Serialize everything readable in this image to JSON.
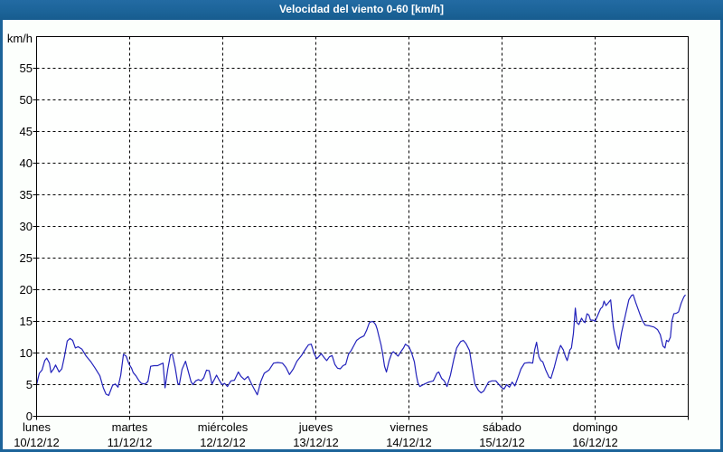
{
  "window": {
    "title": "Velocidad del viento 0-60 [km/h]"
  },
  "style": {
    "frame_color": "#1c6499",
    "panel_background": "#fcfffc",
    "plot_background": "#fefffe",
    "grid_color": "#000000",
    "axis_color": "#000000",
    "title_text_color": "#ffffff",
    "line_color": "#2222bb"
  },
  "chart_data": {
    "type": "line",
    "title": "Velocidad del viento 0-60 [km/h]",
    "ylabel": "km/h",
    "xlabel": "",
    "ylim": [
      0,
      60
    ],
    "ytick_interval": 5,
    "ytick_labels": [
      "0",
      "5",
      "10",
      "15",
      "20",
      "25",
      "30",
      "35",
      "40",
      "45",
      "50",
      "55"
    ],
    "grid": "dashed, horizontal every 5 km/h and vertical at every day boundary",
    "legend_position": "none",
    "x_unit": "hours from 00:00 lunes 10/12/12 (0 to 168)",
    "x_axis_days": [
      {
        "weekday": "lunes",
        "date": "10/12/12"
      },
      {
        "weekday": "martes",
        "date": "11/12/12"
      },
      {
        "weekday": "miércoles",
        "date": "12/12/12"
      },
      {
        "weekday": "jueves",
        "date": "13/12/12"
      },
      {
        "weekday": "viernes",
        "date": "14/12/12"
      },
      {
        "weekday": "sábado",
        "date": "15/12/12"
      },
      {
        "weekday": "domingo",
        "date": "16/12/12"
      }
    ],
    "series": [
      {
        "name": "Velocidad del viento",
        "color": "#2222bb",
        "points": [
          [
            0,
            5
          ],
          [
            0.7,
            6.8
          ],
          [
            1.4,
            7.3
          ],
          [
            2.1,
            8.8
          ],
          [
            2.6,
            9.2
          ],
          [
            3.3,
            8.4
          ],
          [
            3.7,
            6.9
          ],
          [
            4.4,
            7.5
          ],
          [
            4.9,
            8.1
          ],
          [
            5.8,
            7
          ],
          [
            6.5,
            7.5
          ],
          [
            7.2,
            9.5
          ],
          [
            7.9,
            11.9
          ],
          [
            8.6,
            12.3
          ],
          [
            9.3,
            12
          ],
          [
            10,
            10.8
          ],
          [
            10.7,
            11
          ],
          [
            11.7,
            10.6
          ],
          [
            12.8,
            9.5
          ],
          [
            14,
            8.6
          ],
          [
            15.1,
            7.6
          ],
          [
            16.3,
            6.4
          ],
          [
            17.2,
            4.5
          ],
          [
            17.9,
            3.5
          ],
          [
            18.6,
            3.3
          ],
          [
            19.6,
            4.9
          ],
          [
            20.3,
            5.1
          ],
          [
            21,
            4.6
          ],
          [
            21.7,
            6.5
          ],
          [
            22.4,
            9.8
          ],
          [
            23.1,
            9.5
          ],
          [
            23.8,
            8.3
          ],
          [
            24.5,
            7.6
          ],
          [
            24.9,
            6.9
          ],
          [
            25.6,
            6.4
          ],
          [
            26.3,
            5.7
          ],
          [
            27,
            5.2
          ],
          [
            28,
            5.1
          ],
          [
            28.7,
            5.5
          ],
          [
            29.4,
            7.9
          ],
          [
            30.3,
            8
          ],
          [
            31.2,
            8
          ],
          [
            32.2,
            8.3
          ],
          [
            32.6,
            8.4
          ],
          [
            33.1,
            4.5
          ],
          [
            33.8,
            7.4
          ],
          [
            34.5,
            9.7
          ],
          [
            35,
            9.8
          ],
          [
            35.7,
            7.8
          ],
          [
            36.4,
            5.2
          ],
          [
            36.8,
            5
          ],
          [
            37.5,
            7.4
          ],
          [
            38.4,
            8.7
          ],
          [
            39.1,
            7.1
          ],
          [
            39.8,
            5.5
          ],
          [
            40.3,
            5
          ],
          [
            41,
            5.6
          ],
          [
            41.7,
            5.8
          ],
          [
            42.4,
            5.6
          ],
          [
            43.1,
            6.1
          ],
          [
            43.8,
            7.3
          ],
          [
            44.5,
            7.2
          ],
          [
            45.2,
            5.1
          ],
          [
            45.9,
            5.9
          ],
          [
            46.4,
            6.5
          ],
          [
            47.1,
            5.7
          ],
          [
            47.8,
            5
          ],
          [
            48.5,
            5.2
          ],
          [
            49.2,
            4.7
          ],
          [
            50.1,
            5.6
          ],
          [
            51,
            5.7
          ],
          [
            52,
            7
          ],
          [
            52.7,
            6.3
          ],
          [
            53.6,
            5.8
          ],
          [
            54.5,
            6.3
          ],
          [
            55.5,
            5
          ],
          [
            56.2,
            4.2
          ],
          [
            56.9,
            3.4
          ],
          [
            57.8,
            5.5
          ],
          [
            58.7,
            6.8
          ],
          [
            59.9,
            7.3
          ],
          [
            61.1,
            8.4
          ],
          [
            62.2,
            8.5
          ],
          [
            63.4,
            8.4
          ],
          [
            64.3,
            7.7
          ],
          [
            65.2,
            6.6
          ],
          [
            66.2,
            7.5
          ],
          [
            67.1,
            8.7
          ],
          [
            68.3,
            9.6
          ],
          [
            69.2,
            10.5
          ],
          [
            70.1,
            11.3
          ],
          [
            70.8,
            11.4
          ],
          [
            71.5,
            10
          ],
          [
            72.2,
            9.1
          ],
          [
            72.7,
            9.4
          ],
          [
            73.4,
            9.9
          ],
          [
            74.1,
            9.3
          ],
          [
            74.8,
            8.8
          ],
          [
            75.5,
            9.4
          ],
          [
            76.2,
            9.6
          ],
          [
            76.9,
            8.2
          ],
          [
            77.6,
            7.6
          ],
          [
            78.3,
            7.5
          ],
          [
            79,
            8
          ],
          [
            79.7,
            8.2
          ],
          [
            80.4,
            9.8
          ],
          [
            81.1,
            10.4
          ],
          [
            81.8,
            11.2
          ],
          [
            82.5,
            12
          ],
          [
            83.4,
            12.4
          ],
          [
            84.4,
            12.7
          ],
          [
            85.1,
            13.6
          ],
          [
            85.8,
            14.8
          ],
          [
            86.5,
            15
          ],
          [
            86.9,
            14.9
          ],
          [
            87.4,
            14.5
          ],
          [
            87.8,
            13.8
          ],
          [
            88.3,
            12.5
          ],
          [
            88.8,
            11.3
          ],
          [
            89.2,
            10
          ],
          [
            89.7,
            7.9
          ],
          [
            90.2,
            7
          ],
          [
            90.9,
            8.8
          ],
          [
            91.6,
            10
          ],
          [
            92,
            10.2
          ],
          [
            92.7,
            9.8
          ],
          [
            93.2,
            9.5
          ],
          [
            93.9,
            10.2
          ],
          [
            94.6,
            10.8
          ],
          [
            95.1,
            11.4
          ],
          [
            95.5,
            11.2
          ],
          [
            96,
            11
          ],
          [
            96.7,
            10
          ],
          [
            97.4,
            8.6
          ],
          [
            97.9,
            6.5
          ],
          [
            98.3,
            5.3
          ],
          [
            98.8,
            4.7
          ],
          [
            100,
            5.1
          ],
          [
            101.1,
            5.4
          ],
          [
            102.3,
            5.6
          ],
          [
            103.2,
            6.8
          ],
          [
            103.7,
            7
          ],
          [
            104.4,
            6
          ],
          [
            105.1,
            5.6
          ],
          [
            105.8,
            4.7
          ],
          [
            106.7,
            6.5
          ],
          [
            107.6,
            9.1
          ],
          [
            108.3,
            10.8
          ],
          [
            109.3,
            11.8
          ],
          [
            110,
            12
          ],
          [
            110.7,
            11.5
          ],
          [
            111.6,
            10.4
          ],
          [
            112.3,
            7.7
          ],
          [
            113,
            5.1
          ],
          [
            113.9,
            4.1
          ],
          [
            114.6,
            3.7
          ],
          [
            115.3,
            4
          ],
          [
            116.5,
            5.4
          ],
          [
            117.4,
            5.6
          ],
          [
            118.4,
            5.6
          ],
          [
            119.1,
            5.1
          ],
          [
            119.8,
            4.6
          ],
          [
            120.5,
            4.3
          ],
          [
            121.2,
            5
          ],
          [
            121.9,
            4.6
          ],
          [
            122.6,
            5.4
          ],
          [
            123.3,
            4.8
          ],
          [
            124.2,
            6.3
          ],
          [
            124.9,
            7.5
          ],
          [
            125.8,
            8.4
          ],
          [
            127,
            8.5
          ],
          [
            127.9,
            8.4
          ],
          [
            128.4,
            10.5
          ],
          [
            128.9,
            11.7
          ],
          [
            129.5,
            9.4
          ],
          [
            130,
            8.8
          ],
          [
            130.5,
            8.6
          ],
          [
            131.2,
            7.4
          ],
          [
            132.1,
            6.2
          ],
          [
            132.6,
            6
          ],
          [
            133.5,
            7.8
          ],
          [
            134.4,
            10
          ],
          [
            135.1,
            11.2
          ],
          [
            135.8,
            10.5
          ],
          [
            136.3,
            9.5
          ],
          [
            136.8,
            8.8
          ],
          [
            137.5,
            10.5
          ],
          [
            137.9,
            10.8
          ],
          [
            138.4,
            13.1
          ],
          [
            138.9,
            17.1
          ],
          [
            139.3,
            14.8
          ],
          [
            139.8,
            14.5
          ],
          [
            140.5,
            15.5
          ],
          [
            141,
            15
          ],
          [
            141.4,
            14.8
          ],
          [
            141.9,
            16.2
          ],
          [
            142.4,
            16
          ],
          [
            142.8,
            15.2
          ],
          [
            143.5,
            15.2
          ],
          [
            144,
            15
          ],
          [
            144.7,
            16
          ],
          [
            145.4,
            17
          ],
          [
            145.9,
            17.3
          ],
          [
            146.3,
            18.2
          ],
          [
            146.8,
            17.5
          ],
          [
            147.5,
            18
          ],
          [
            148,
            18.4
          ],
          [
            148.7,
            14.1
          ],
          [
            149.6,
            11.3
          ],
          [
            150.1,
            10.6
          ],
          [
            150.8,
            13.2
          ],
          [
            152,
            16.5
          ],
          [
            152.7,
            18.4
          ],
          [
            153.4,
            19.1
          ],
          [
            153.8,
            19.2
          ],
          [
            154.5,
            17.9
          ],
          [
            155.5,
            16.2
          ],
          [
            156.2,
            15.1
          ],
          [
            156.9,
            14.4
          ],
          [
            158,
            14.3
          ],
          [
            159.2,
            14.1
          ],
          [
            160.1,
            13.7
          ],
          [
            160.8,
            12.9
          ],
          [
            161.5,
            11.1
          ],
          [
            162,
            10.8
          ],
          [
            162.4,
            12
          ],
          [
            162.9,
            11.8
          ],
          [
            163.4,
            12.5
          ],
          [
            163.8,
            15.1
          ],
          [
            164.3,
            16.2
          ],
          [
            165,
            16.3
          ],
          [
            165.5,
            16.5
          ],
          [
            166.2,
            17.9
          ],
          [
            166.9,
            18.9
          ],
          [
            167.3,
            19.2
          ]
        ]
      }
    ]
  }
}
